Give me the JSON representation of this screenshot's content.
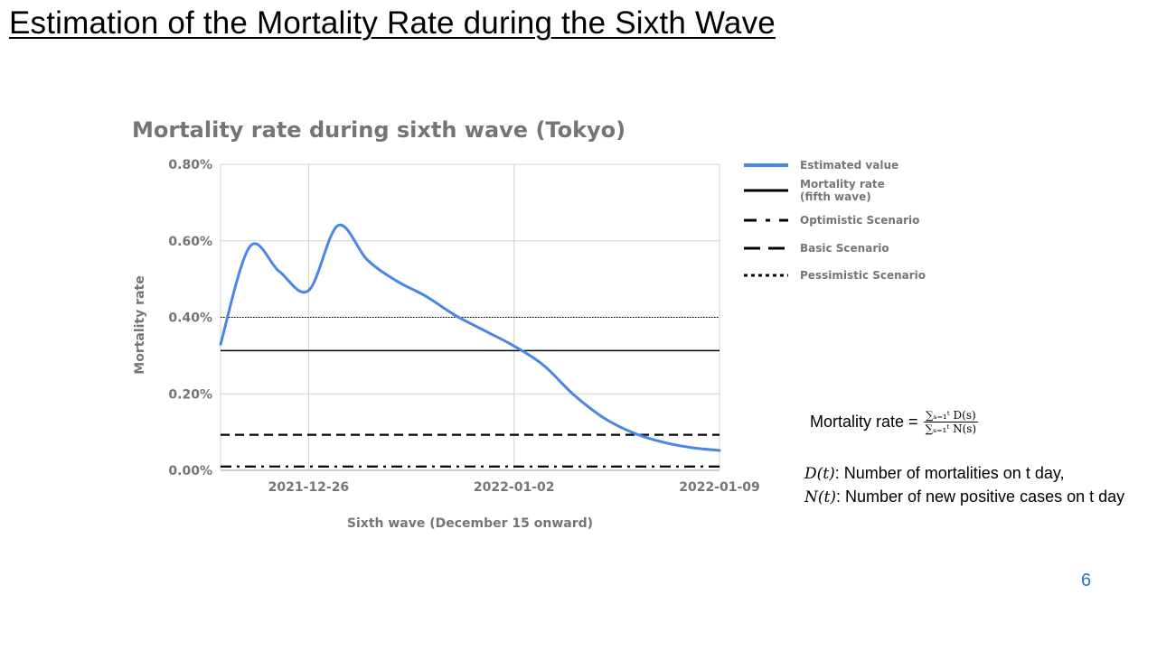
{
  "slide": {
    "title": "Estimation of the Mortality Rate during the Sixth Wave",
    "page_number": "6"
  },
  "formula": {
    "lhs": "Mortality rate =",
    "numerator": "∑ₛ₌₁ᵗ D(s)",
    "denominator": "∑ₛ₌₁ᵗ N(s)"
  },
  "definitions": [
    {
      "symbol": "D(t)",
      "text": ": Number of mortalities on t day,"
    },
    {
      "symbol": "N(t)",
      "text": ": Number of new positive cases on t day"
    }
  ],
  "colors": {
    "estimated": "#4a86e8",
    "reference": "#000000",
    "grid": "#d0d0d0",
    "text_gray": "#757575"
  },
  "chart_data": {
    "type": "line",
    "title": "Mortality rate during sixth wave (Tokyo)",
    "xlabel": "Sixth wave (December 15 onward)",
    "ylabel": "Mortality rate",
    "x_ticks": [
      "2021-12-26",
      "2022-01-02",
      "2022-01-09"
    ],
    "x_domain": [
      "2021-12-23",
      "2022-01-09"
    ],
    "ylim": [
      0,
      0.8
    ],
    "y_ticks": [
      "0.00%",
      "0.20%",
      "0.40%",
      "0.60%",
      "0.80%"
    ],
    "y_unit": "%",
    "grid": true,
    "legend_position": "right",
    "series": [
      {
        "name": "Estimated value",
        "style": "solid-blue",
        "x": [
          "2021-12-23",
          "2021-12-24",
          "2021-12-25",
          "2021-12-26",
          "2021-12-27",
          "2021-12-28",
          "2021-12-29",
          "2021-12-30",
          "2021-12-31",
          "2022-01-01",
          "2022-01-02",
          "2022-01-03",
          "2022-01-04",
          "2022-01-05",
          "2022-01-06",
          "2022-01-07",
          "2022-01-08",
          "2022-01-09"
        ],
        "y": [
          0.33,
          0.585,
          0.52,
          0.47,
          0.64,
          0.55,
          0.495,
          0.455,
          0.405,
          0.365,
          0.325,
          0.275,
          0.2,
          0.14,
          0.1,
          0.075,
          0.06,
          0.052
        ]
      },
      {
        "name": "Mortality rate\n(fifth wave)",
        "style": "solid-black",
        "constant": 0.313
      },
      {
        "name": "Optimistic Scenario",
        "style": "dash-dot",
        "constant": 0.01
      },
      {
        "name": "Basic Scenario",
        "style": "dashed",
        "constant": 0.093
      },
      {
        "name": "Pessimistic Scenario",
        "style": "dotted",
        "constant": 0.4
      }
    ]
  }
}
